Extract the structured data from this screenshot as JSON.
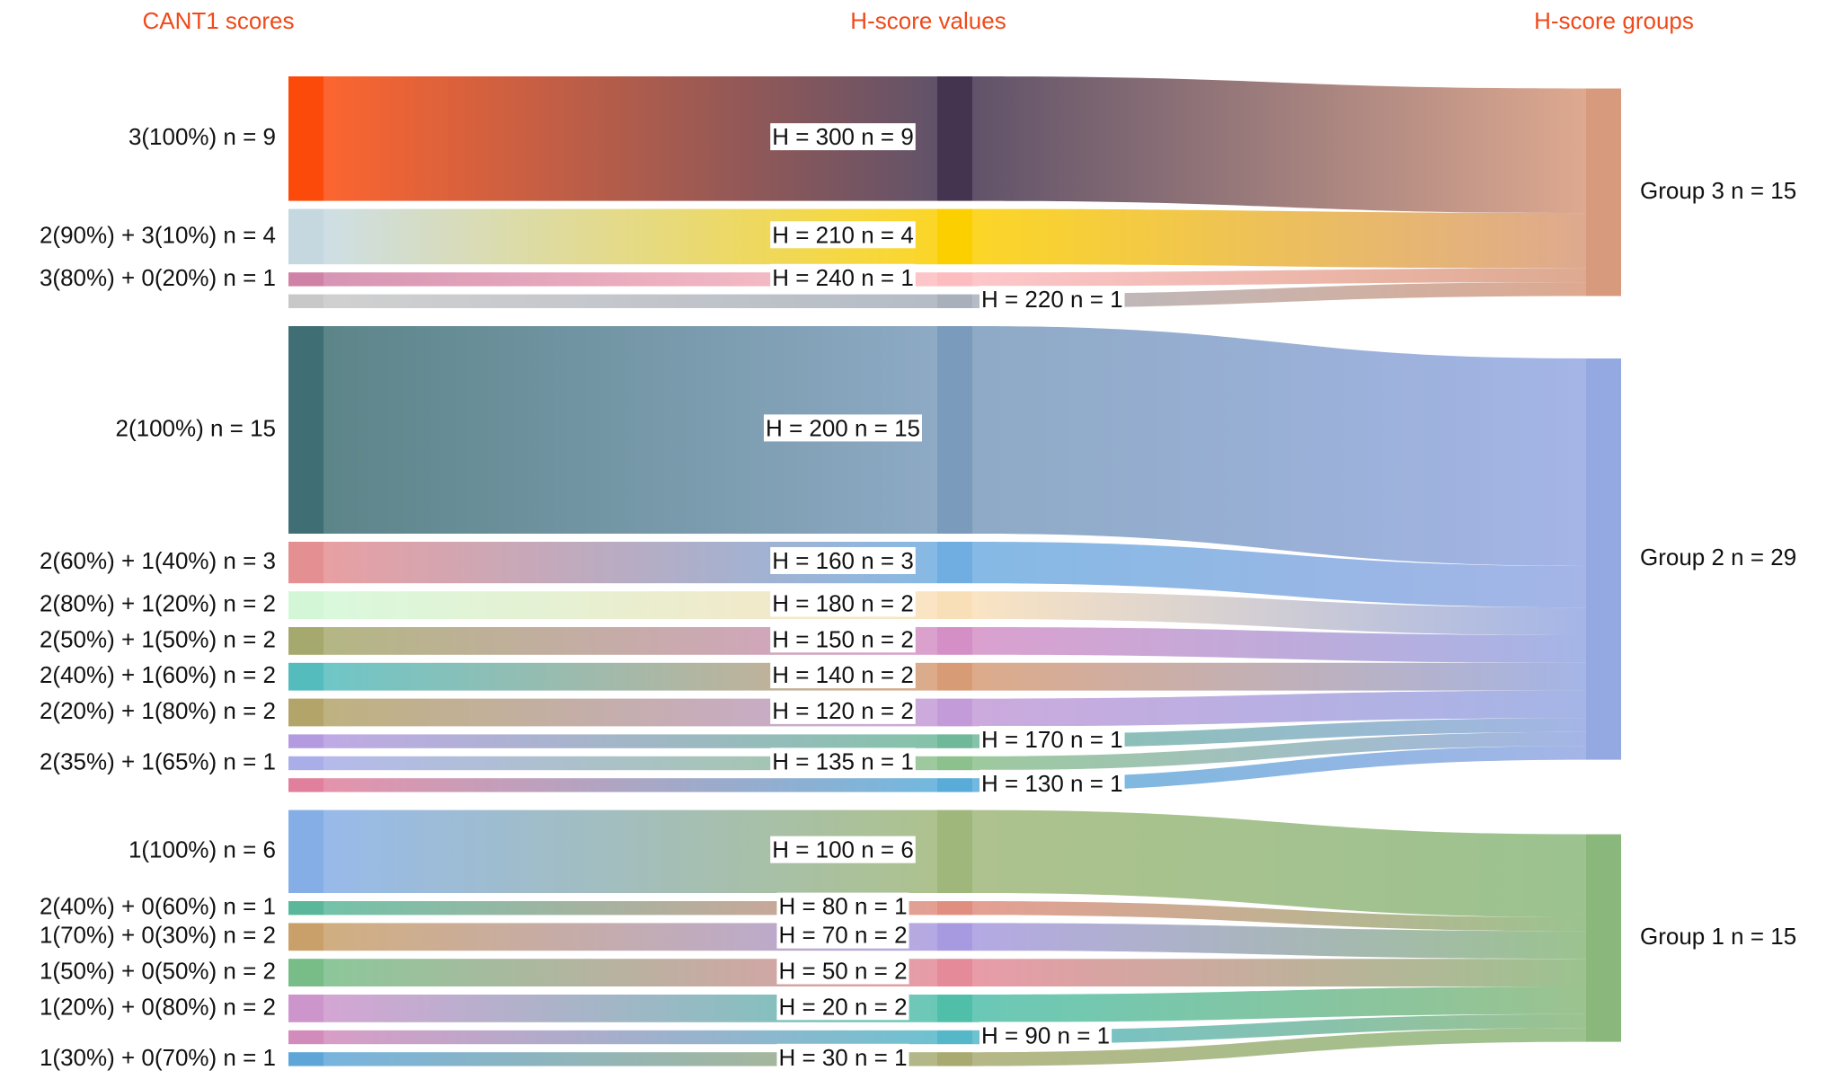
{
  "chart_data": {
    "type": "sankey",
    "column_titles": [
      "CANT1 scores",
      "H-score values",
      "H-score groups"
    ],
    "groups": [
      {
        "label": "Group 3 n = 15",
        "color": "#d89a7c",
        "items": [
          {
            "left": "3(100%) n = 9",
            "middle": "H = 300 n = 9",
            "value": 9,
            "left_color": "#fc4a0a",
            "middle_color": "#45344f"
          },
          {
            "left": "2(90%) + 3(10%) n = 4",
            "middle": "H = 210 n = 4",
            "value": 4,
            "left_color": "#c5d8e0",
            "middle_color": "#fbcf00"
          },
          {
            "left": "3(80%) + 0(20%) n = 1",
            "middle": "H = 240 n = 1",
            "value": 1,
            "left_color": "#cf82a6",
            "middle_color": "#fdbcc0"
          },
          {
            "left": null,
            "middle": "H = 220 n = 1",
            "value": 1,
            "left_color": "#c8c8c8",
            "middle_color": "#a8b0bc"
          }
        ]
      },
      {
        "label": "Group 2 n = 29",
        "color": "#94a8e2",
        "items": [
          {
            "left": "2(100%) n = 15",
            "middle": "H = 200 n = 15",
            "value": 15,
            "left_color": "#3f6f74",
            "middle_color": "#7a9bbb"
          },
          {
            "left": "2(60%) + 1(40%) n = 3",
            "middle": "H = 160 n = 3",
            "value": 3,
            "left_color": "#e48f92",
            "middle_color": "#70ade0"
          },
          {
            "left": "2(80%) + 1(20%) n = 2",
            "middle": "H = 180 n = 2",
            "value": 2,
            "left_color": "#d3f7d6",
            "middle_color": "#f9dfb8"
          },
          {
            "left": "2(50%) + 1(50%) n = 2",
            "middle": "H = 150 n = 2",
            "value": 2,
            "left_color": "#a6a96e",
            "middle_color": "#d490c6"
          },
          {
            "left": "2(40%) + 1(60%) n = 2",
            "middle": "H = 140 n = 2",
            "value": 2,
            "left_color": "#55bcbd",
            "middle_color": "#d79c75"
          },
          {
            "left": "2(20%) + 1(80%) n = 2",
            "middle": "H = 120 n = 2",
            "value": 2,
            "left_color": "#b3a46a",
            "middle_color": "#c39bd8"
          },
          {
            "left": null,
            "middle": "H = 170 n = 1",
            "value": 1,
            "left_color": "#b49be0",
            "middle_color": "#6fb89a"
          },
          {
            "left": "2(35%) + 1(65%) n = 1",
            "middle": "H = 135 n = 1",
            "value": 1,
            "left_color": "#a9aee8",
            "middle_color": "#8cc08c"
          },
          {
            "left": null,
            "middle": "H = 130 n = 1",
            "value": 1,
            "left_color": "#e0809c",
            "middle_color": "#5aacd8"
          }
        ]
      },
      {
        "label": "Group 1 n = 15",
        "color": "#8ab87c",
        "items": [
          {
            "left": "1(100%) n = 6",
            "middle": "H = 100 n = 6",
            "value": 6,
            "left_color": "#86aee6",
            "middle_color": "#9fb77a"
          },
          {
            "left": "2(40%) + 0(60%) n = 1",
            "middle": "H = 80 n = 1",
            "value": 1,
            "left_color": "#5ab79a",
            "middle_color": "#e08e80"
          },
          {
            "left": "1(70%) + 0(30%) n = 2",
            "middle": "H = 70 n = 2",
            "value": 2,
            "left_color": "#c9a06a",
            "middle_color": "#a89ae0"
          },
          {
            "left": "1(50%) + 0(50%) n = 2",
            "middle": "H = 50 n = 2",
            "value": 2,
            "left_color": "#78bd88",
            "middle_color": "#e48a98"
          },
          {
            "left": "1(20%) + 0(80%) n = 2",
            "middle": "H = 20 n = 2",
            "value": 2,
            "left_color": "#cc96cc",
            "middle_color": "#50bfaa"
          },
          {
            "left": null,
            "middle": "H = 90 n = 1",
            "value": 1,
            "left_color": "#d18cbc",
            "middle_color": "#55b7c8"
          },
          {
            "left": "1(30%) + 0(70%) n = 1",
            "middle": "H = 30 n = 1",
            "value": 1,
            "left_color": "#5fa6d8",
            "middle_color": "#a8aa70"
          }
        ]
      }
    ]
  }
}
